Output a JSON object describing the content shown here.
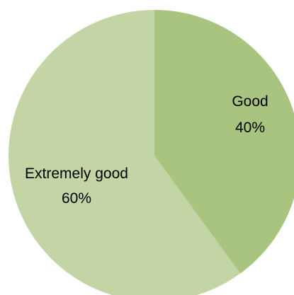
{
  "chart_data": {
    "type": "pie",
    "slices": [
      {
        "label": "Good",
        "value": 40,
        "value_label": "40%",
        "color": "#a9c47f"
      },
      {
        "label": "Extremely good",
        "value": 60,
        "value_label": "60%",
        "color": "#c3d5a4"
      }
    ],
    "start": "12 o'clock",
    "direction": "clockwise",
    "legend": "none"
  }
}
